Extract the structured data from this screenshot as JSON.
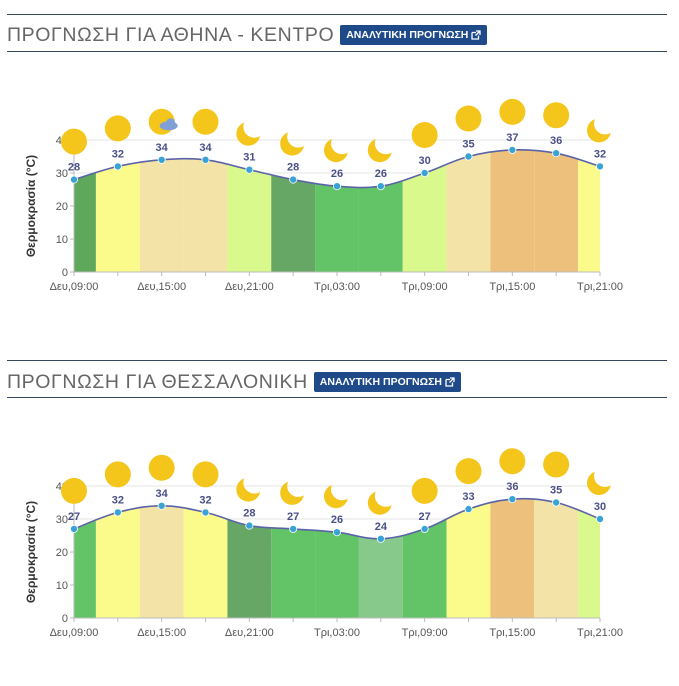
{
  "sections": [
    {
      "title": "ΠΡΟΓΝΩΣΗ ΓΙΑ ΑΘΗΝΑ - ΚΕΝΤΡΟ",
      "button_label": "ΑΝΑΛΥΤΙΚΗ ΠΡΟΓΝΩΣΗ",
      "button_icon": "external-link-icon"
    },
    {
      "title": "ΠΡΟΓΝΩΣΗ ΓΙΑ ΘΕΣΣΑΛΟΝΙΚΗ",
      "button_label": "ΑΝΑΛΥΤΙΚΗ ΠΡΟΓΝΩΣΗ",
      "button_icon": "external-link-icon"
    }
  ],
  "chart_data": [
    {
      "type": "area",
      "title": "",
      "xlabel": "",
      "ylabel": "Θερμοκρασία (°C)",
      "ylim": [
        0,
        40
      ],
      "yticks": [
        0,
        10,
        20,
        30,
        40
      ],
      "x": [
        "Δευ,09:00",
        "Δευ,12:00",
        "Δευ,15:00",
        "Δευ,18:00",
        "Δευ,21:00",
        "Τρι,00:00",
        "Τρι,03:00",
        "Τρι,06:00",
        "Τρι,09:00",
        "Τρι,12:00",
        "Τρι,15:00",
        "Τρι,18:00",
        "Τρι,21:00"
      ],
      "xtick_labels": [
        "Δευ,09:00",
        "Δευ,15:00",
        "Δευ,21:00",
        "Τρι,03:00",
        "Τρι,09:00",
        "Τρι,15:00",
        "Τρι,21:00"
      ],
      "values": [
        28,
        32,
        34,
        34,
        31,
        28,
        26,
        26,
        30,
        35,
        37,
        36,
        32
      ],
      "weather_icons": [
        "sun",
        "sun",
        "sun-cloud",
        "sun",
        "moon",
        "moon",
        "moon",
        "moon",
        "sun",
        "sun",
        "sun",
        "sun",
        "moon"
      ],
      "band_colors": [
        "#5fa75a",
        "#fbfb8c",
        "#f3e3a6",
        "#f3e3a6",
        "#d9f98c",
        "#67a765",
        "#62c466",
        "#62c466",
        "#d9f98c",
        "#f3e3a6",
        "#edc07c",
        "#edc07c",
        "#fbfb8c"
      ],
      "line_color": "#5b63a8",
      "marker_color": "#3aa3d6",
      "grid": true
    },
    {
      "type": "area",
      "title": "",
      "xlabel": "",
      "ylabel": "Θερμοκρασία (°C)",
      "ylim": [
        0,
        40
      ],
      "yticks": [
        0,
        10,
        20,
        30,
        40
      ],
      "x": [
        "Δευ,09:00",
        "Δευ,12:00",
        "Δευ,15:00",
        "Δευ,18:00",
        "Δευ,21:00",
        "Τρι,00:00",
        "Τρι,03:00",
        "Τρι,06:00",
        "Τρι,09:00",
        "Τρι,12:00",
        "Τρι,15:00",
        "Τρι,18:00",
        "Τρι,21:00"
      ],
      "xtick_labels": [
        "Δευ,09:00",
        "Δευ,15:00",
        "Δευ,21:00",
        "Τρι,03:00",
        "Τρι,09:00",
        "Τρι,15:00",
        "Τρι,21:00"
      ],
      "values": [
        27,
        32,
        34,
        32,
        28,
        27,
        26,
        24,
        27,
        33,
        36,
        35,
        30
      ],
      "weather_icons": [
        "sun",
        "sun",
        "sun",
        "sun",
        "moon",
        "moon",
        "moon",
        "moon",
        "sun",
        "sun",
        "sun",
        "sun",
        "moon"
      ],
      "band_colors": [
        "#62c466",
        "#fbfb8c",
        "#f3e3a6",
        "#fbfb8c",
        "#67a765",
        "#62c466",
        "#62c466",
        "#86c98a",
        "#62c466",
        "#fbfb8c",
        "#edc07c",
        "#f3e3a6",
        "#d9f98c"
      ],
      "line_color": "#5b63a8",
      "marker_color": "#3aa3d6",
      "grid": true
    }
  ]
}
